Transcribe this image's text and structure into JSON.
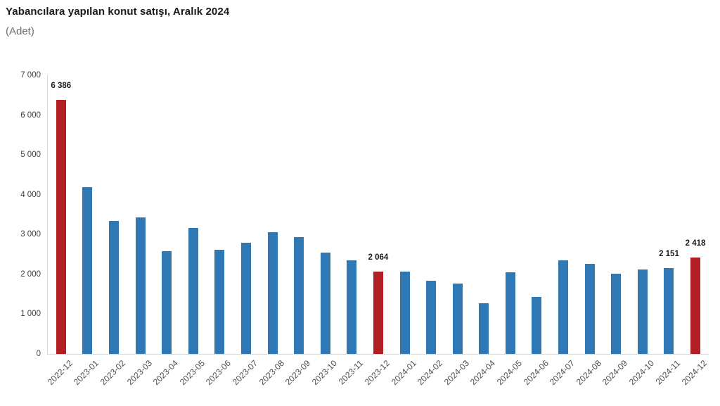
{
  "header": {
    "title": "Yabancılara yapılan konut satışı, Aralık 2024",
    "subtitle": "(Adet)"
  },
  "chart_data": {
    "type": "bar",
    "title": "Yabancılara yapılan konut satışı, Aralık 2024",
    "unit_label": "(Adet)",
    "categories": [
      "2022-12",
      "2023-01",
      "2023-02",
      "2023-03",
      "2023-04",
      "2023-05",
      "2023-06",
      "2023-07",
      "2023-08",
      "2023-09",
      "2023-10",
      "2023-11",
      "2023-12",
      "2024-01",
      "2024-02",
      "2024-03",
      "2024-04",
      "2024-05",
      "2024-06",
      "2024-07",
      "2024-08",
      "2024-09",
      "2024-10",
      "2024-11",
      "2024-12"
    ],
    "values": [
      6386,
      4186,
      3350,
      3428,
      2574,
      3167,
      2625,
      2801,
      3058,
      2938,
      2544,
      2353,
      2064,
      2065,
      1836,
      1762,
      1280,
      2060,
      1440,
      2351,
      2266,
      2022,
      2118,
      2151,
      2418
    ],
    "data_labels": [
      "6 386",
      null,
      null,
      null,
      null,
      null,
      null,
      null,
      null,
      null,
      null,
      null,
      "2 064",
      null,
      null,
      null,
      null,
      null,
      null,
      null,
      null,
      null,
      null,
      "2 151",
      "2 418"
    ],
    "highlight_indices": [
      0,
      12,
      24
    ],
    "colors": {
      "bar": "#2e79b5",
      "highlight": "#b11e23",
      "axis_line": "#d9d9d9"
    },
    "ylim": [
      0,
      7000
    ],
    "ytick_step": 1000,
    "ytick_labels": [
      "0",
      "1 000",
      "2 000",
      "3 000",
      "4 000",
      "5 000",
      "6 000",
      "7 000"
    ],
    "grid": false,
    "legend": "none",
    "xlabel": "",
    "ylabel": "",
    "number_format": "space-thousands",
    "xtick_rotation_deg": -45
  }
}
